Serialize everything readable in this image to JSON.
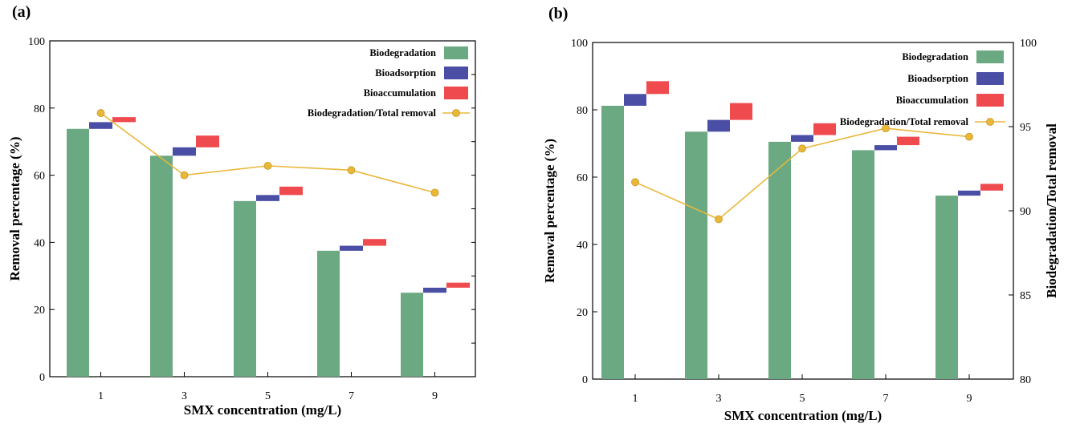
{
  "chart_data": [
    {
      "panel_label": "(a)",
      "type": "bar",
      "categories": [
        "1",
        "3",
        "5",
        "7",
        "9"
      ],
      "xlabel": "SMX concentration (mg/L)",
      "ylabel": "Removal percentage (%)",
      "ylim": [
        0,
        100
      ],
      "yticks": [
        "0",
        "20",
        "40",
        "60",
        "80",
        "100"
      ],
      "grid": false,
      "legend_position": "top-right",
      "stacking": "waterfall",
      "series": [
        {
          "name": "Biodegradation",
          "color": "#6aa981",
          "values": [
            73.8,
            65.8,
            52.3,
            37.5,
            25.0
          ]
        },
        {
          "name": "Bioadsorption",
          "color": "#4b4ea5",
          "values": [
            2.0,
            2.5,
            1.8,
            1.5,
            1.5
          ]
        },
        {
          "name": "Bioaccumulation",
          "color": "#ef4a4e",
          "values": [
            1.5,
            3.5,
            2.5,
            2.0,
            1.5
          ]
        }
      ],
      "line": {
        "name": "Biodegradation/Total removal",
        "color": "#e9b83a",
        "axis": "left",
        "values": [
          78.5,
          60.0,
          62.8,
          61.5,
          54.8
        ]
      }
    },
    {
      "panel_label": "(b)",
      "type": "bar",
      "categories": [
        "1",
        "3",
        "5",
        "7",
        "9"
      ],
      "xlabel": "SMX concentration (mg/L)",
      "ylabel": "Removal percentage (%)",
      "y2label": "Biodegradation/Total removal",
      "ylim": [
        0,
        100
      ],
      "y2lim": [
        80,
        100
      ],
      "yticks": [
        "0",
        "20",
        "40",
        "60",
        "80",
        "100"
      ],
      "y2ticks": [
        "80",
        "85",
        "90",
        "95",
        "100"
      ],
      "grid": false,
      "legend_position": "top-right",
      "stacking": "waterfall",
      "series": [
        {
          "name": "Biodegradation",
          "color": "#6aa981",
          "values": [
            81.2,
            73.5,
            70.5,
            68.0,
            54.5
          ]
        },
        {
          "name": "Bioadsorption",
          "color": "#4b4ea5",
          "values": [
            3.5,
            3.5,
            2.0,
            1.5,
            1.5
          ]
        },
        {
          "name": "Bioaccumulation",
          "color": "#ef4a4e",
          "values": [
            3.8,
            5.0,
            3.5,
            2.5,
            2.0
          ]
        }
      ],
      "line": {
        "name": "Biodegradation/Total removal",
        "color": "#e9b83a",
        "axis": "right",
        "values": [
          91.7,
          89.5,
          93.7,
          94.9,
          94.4
        ]
      }
    }
  ]
}
